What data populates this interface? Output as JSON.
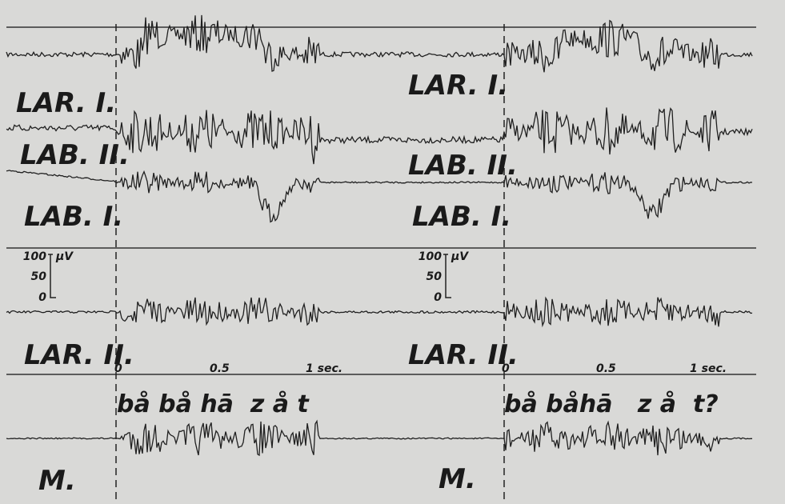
{
  "panels": [
    {
      "channels": [
        "LAR. I.",
        "LAB. II.",
        "LAB. I.",
        "LAR. II."
      ],
      "scale": {
        "max": "100",
        "mid": "50",
        "min": "0",
        "unit": "µV"
      },
      "time_ticks": [
        "0",
        "0.5",
        "1 sec."
      ],
      "utterance": "bå bå hā  z å t",
      "mic": "M."
    },
    {
      "channels": [
        "LAR. I.",
        "LAB. II.",
        "LAB. I.",
        "LAR. II."
      ],
      "scale": {
        "max": "100",
        "mid": "50",
        "min": "0",
        "unit": "µV"
      },
      "time_ticks": [
        "0",
        "0.5",
        "1 sec."
      ],
      "utterance": "bå båhā   z å  t?",
      "mic": "M."
    }
  ]
}
